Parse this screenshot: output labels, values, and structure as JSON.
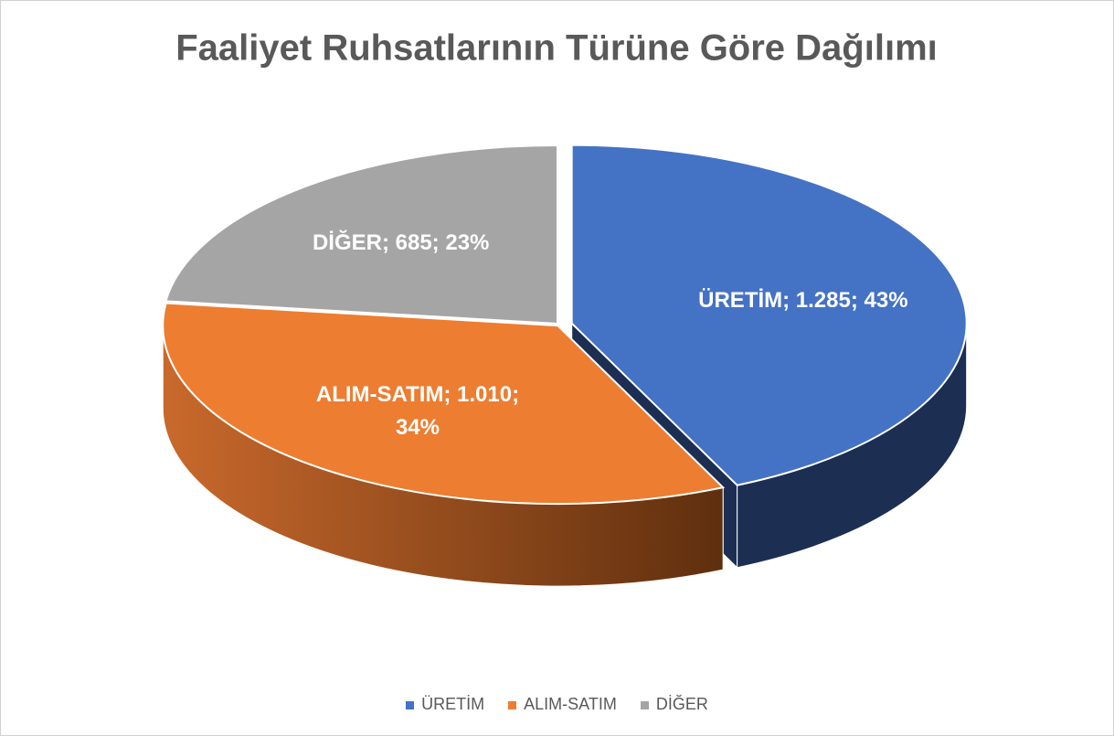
{
  "chart_data": {
    "type": "pie3d",
    "title": "Faaliyet Ruhsatlarının Türüne Göre Dağılımı",
    "categories": [
      "ÜRETİM",
      "ALIM-SATIM",
      "DİĞER"
    ],
    "values": [
      1285,
      1010,
      685
    ],
    "value_labels": [
      "ÜRETİM; 1.285; 43%",
      "ALIM-SATIM; 1.010; 34%",
      "DİĞER; 685; 23%"
    ],
    "colors": [
      "#4472c4",
      "#ed7d31",
      "#a5a5a5"
    ],
    "legend": "bottom"
  }
}
